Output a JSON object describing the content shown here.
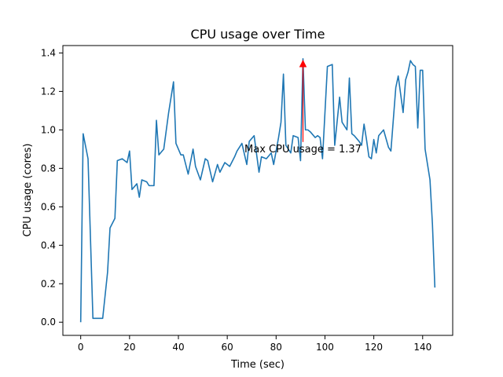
{
  "chart_data": {
    "type": "line",
    "title": "CPU usage over Time",
    "xlabel": "Time (sec)",
    "ylabel": "CPU usage (cores)",
    "xlim": [
      -7.3,
      152.3
    ],
    "ylim": [
      -0.0685,
      1.4385
    ],
    "xticks": [
      0,
      20,
      40,
      60,
      80,
      100,
      120,
      140
    ],
    "xtick_labels": [
      "0",
      "20",
      "40",
      "60",
      "80",
      "100",
      "120",
      "140"
    ],
    "yticks": [
      0.0,
      0.2,
      0.4,
      0.6,
      0.8,
      1.0,
      1.2,
      1.4
    ],
    "ytick_labels": [
      "0.0",
      "0.2",
      "0.4",
      "0.6",
      "0.8",
      "1.0",
      "1.2",
      "1.4"
    ],
    "grid": false,
    "legend": "none",
    "series": [
      {
        "color": "#1f77b4",
        "x": [
          0,
          1,
          3,
          5,
          7,
          9,
          11,
          12,
          14,
          15,
          17,
          19,
          20,
          21,
          23,
          24,
          25,
          27,
          28,
          30,
          31,
          32,
          34,
          36,
          38,
          39,
          41,
          42,
          44,
          46,
          47,
          49,
          51,
          52,
          54,
          56,
          57,
          59,
          61,
          63,
          64,
          66,
          68,
          69,
          71,
          73,
          74,
          76,
          78,
          79,
          81,
          82,
          83,
          84,
          86,
          87,
          89,
          90,
          91,
          92,
          93,
          94,
          96,
          97,
          98,
          99,
          101,
          103,
          104,
          106,
          107,
          109,
          110,
          111,
          112,
          114,
          115,
          116,
          117,
          118,
          119,
          120,
          121,
          122,
          124,
          126,
          127,
          129,
          130,
          132,
          133,
          134,
          135,
          136,
          137,
          138,
          139,
          140,
          141,
          142,
          143,
          144,
          145
        ],
        "values": [
          0.0,
          0.98,
          0.85,
          0.02,
          0.02,
          0.02,
          0.26,
          0.49,
          0.54,
          0.84,
          0.85,
          0.83,
          0.89,
          0.69,
          0.72,
          0.65,
          0.74,
          0.73,
          0.71,
          0.71,
          1.05,
          0.87,
          0.9,
          1.09,
          1.25,
          0.93,
          0.87,
          0.87,
          0.77,
          0.9,
          0.81,
          0.74,
          0.85,
          0.84,
          0.73,
          0.82,
          0.78,
          0.83,
          0.81,
          0.86,
          0.89,
          0.93,
          0.82,
          0.94,
          0.97,
          0.78,
          0.86,
          0.85,
          0.88,
          0.82,
          0.96,
          1.04,
          1.29,
          0.92,
          0.88,
          0.97,
          0.96,
          0.84,
          1.37,
          1.0,
          1.0,
          0.99,
          0.96,
          0.97,
          0.96,
          0.85,
          1.33,
          1.34,
          0.92,
          1.17,
          1.04,
          1.0,
          1.27,
          0.98,
          0.97,
          0.94,
          0.92,
          1.03,
          0.95,
          0.86,
          0.85,
          0.95,
          0.88,
          0.97,
          1.0,
          0.91,
          0.89,
          1.22,
          1.28,
          1.09,
          1.26,
          1.3,
          1.36,
          1.34,
          1.33,
          1.01,
          1.31,
          1.31,
          0.9,
          0.82,
          0.74,
          0.51,
          0.18
        ]
      }
    ],
    "annotation": {
      "text": "Max CPU usage = 1.37",
      "color": "#ff0000",
      "point_x": 91,
      "point_y": 1.37
    }
  }
}
